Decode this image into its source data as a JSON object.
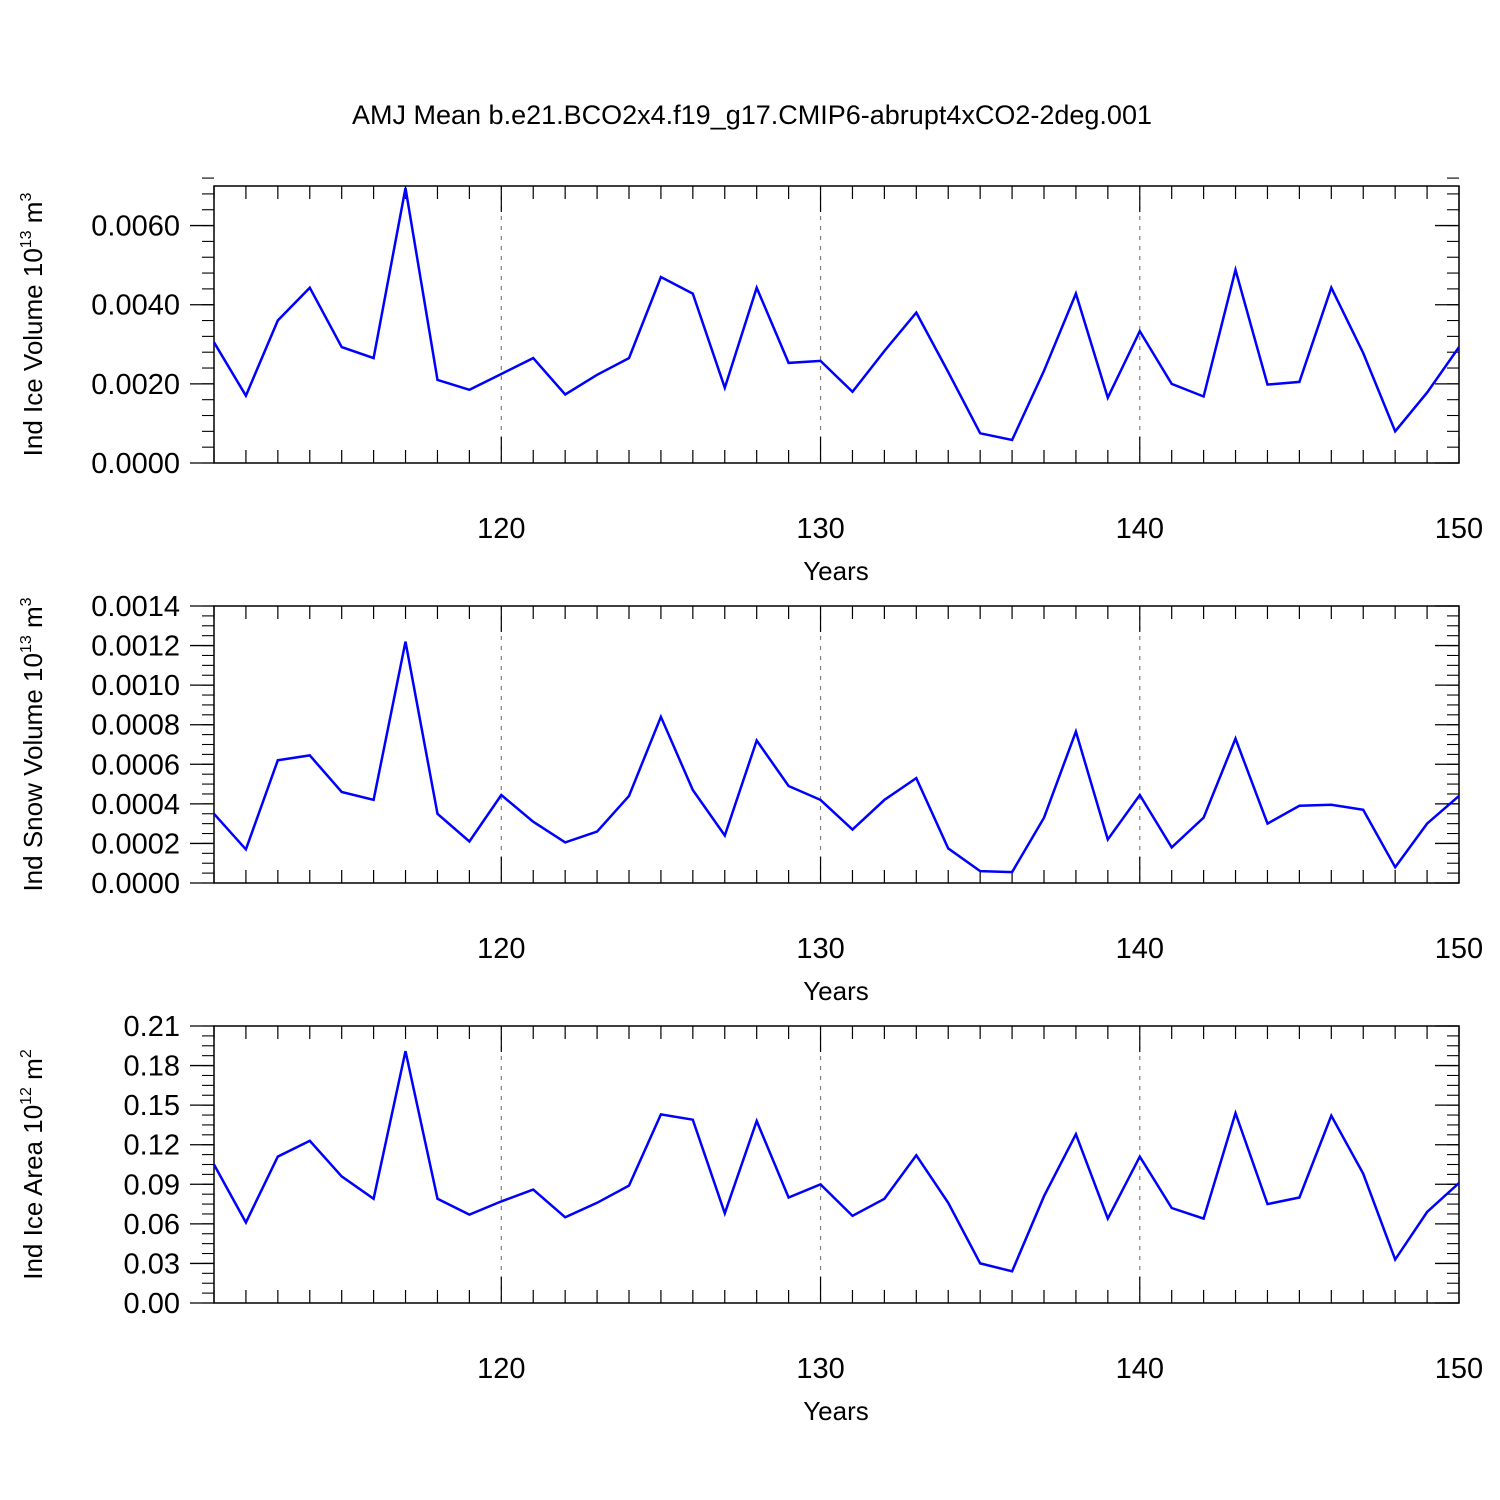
{
  "title": "AMJ Mean b.e21.BCO2x4.f19_g17.CMIP6-abrupt4xCO2-2deg.001",
  "colors": {
    "line": "#0000ff",
    "frame": "#000000",
    "grid": "#808080"
  },
  "chart_data": [
    {
      "type": "line",
      "xlabel": "Years",
      "ylabel": {
        "text": "Ind Ice Volume 10",
        "sup": "13",
        "unit": " m",
        "unit_sup": "3"
      },
      "xlim": [
        111,
        150
      ],
      "ylim": [
        0,
        0.007
      ],
      "x_ticks": [
        120,
        130,
        140,
        150
      ],
      "x_tick_labels": [
        "120",
        "130",
        "140",
        "150"
      ],
      "y_ticks": [
        0,
        0.002,
        0.004,
        0.006
      ],
      "y_tick_labels": [
        "0.0000",
        "0.0020",
        "0.0040",
        "0.0060"
      ],
      "y_minor_step": 0.0004,
      "grid_x": [
        120,
        130,
        140
      ],
      "x": [
        111,
        112,
        113,
        114,
        115,
        116,
        117,
        118,
        119,
        120,
        121,
        122,
        123,
        124,
        125,
        126,
        127,
        128,
        129,
        130,
        131,
        132,
        133,
        134,
        135,
        136,
        137,
        138,
        139,
        140,
        141,
        142,
        143,
        144,
        145,
        146,
        147,
        148,
        149,
        150
      ],
      "values": [
        0.00305,
        0.0017,
        0.0036,
        0.00443,
        0.00293,
        0.00265,
        0.00695,
        0.0021,
        0.00185,
        0.00225,
        0.00265,
        0.00173,
        0.00223,
        0.00265,
        0.0047,
        0.00428,
        0.0019,
        0.00443,
        0.00253,
        0.00258,
        0.0018,
        0.00283,
        0.0038,
        0.0023,
        0.00075,
        0.00058,
        0.00233,
        0.00428,
        0.00165,
        0.00333,
        0.002,
        0.00168,
        0.00488,
        0.00198,
        0.00205,
        0.00443,
        0.00278,
        0.0008,
        0.00178,
        0.00293
      ]
    },
    {
      "type": "line",
      "xlabel": "Years",
      "ylabel": {
        "text": "Ind Snow Volume 10",
        "sup": "13",
        "unit": " m",
        "unit_sup": "3"
      },
      "xlim": [
        111,
        150
      ],
      "ylim": [
        0,
        0.0014
      ],
      "x_ticks": [
        120,
        130,
        140,
        150
      ],
      "x_tick_labels": [
        "120",
        "130",
        "140",
        "150"
      ],
      "y_ticks": [
        0,
        0.0002,
        0.0004,
        0.0006,
        0.0008,
        0.001,
        0.0012,
        0.0014
      ],
      "y_tick_labels": [
        "0.0000",
        "0.0002",
        "0.0004",
        "0.0006",
        "0.0008",
        "0.0010",
        "0.0012",
        "0.0014"
      ],
      "y_minor_step": 5e-05,
      "grid_x": [
        120,
        130,
        140
      ],
      "x": [
        111,
        112,
        113,
        114,
        115,
        116,
        117,
        118,
        119,
        120,
        121,
        122,
        123,
        124,
        125,
        126,
        127,
        128,
        129,
        130,
        131,
        132,
        133,
        134,
        135,
        136,
        137,
        138,
        139,
        140,
        141,
        142,
        143,
        144,
        145,
        146,
        147,
        148,
        149,
        150
      ],
      "values": [
        0.00035,
        0.00017,
        0.00062,
        0.000645,
        0.00046,
        0.00042,
        0.00122,
        0.00035,
        0.00021,
        0.000445,
        0.00031,
        0.000205,
        0.00026,
        0.00044,
        0.00084,
        0.00047,
        0.00024,
        0.00072,
        0.00049,
        0.00042,
        0.00027,
        0.00042,
        0.00053,
        0.000175,
        6e-05,
        5.5e-05,
        0.00033,
        0.000765,
        0.00022,
        0.000445,
        0.00018,
        0.00033,
        0.00073,
        0.0003,
        0.00039,
        0.000395,
        0.00037,
        8e-05,
        0.0003,
        0.00044
      ]
    },
    {
      "type": "line",
      "xlabel": "Years",
      "ylabel": {
        "text": "Ind Ice Area 10",
        "sup": "12",
        "unit": " m",
        "unit_sup": "2"
      },
      "xlim": [
        111,
        150
      ],
      "ylim": [
        0,
        0.21
      ],
      "x_ticks": [
        120,
        130,
        140,
        150
      ],
      "x_tick_labels": [
        "120",
        "130",
        "140",
        "150"
      ],
      "y_ticks": [
        0,
        0.03,
        0.06,
        0.09,
        0.12,
        0.15,
        0.18,
        0.21
      ],
      "y_tick_labels": [
        "0.00",
        "0.03",
        "0.06",
        "0.09",
        "0.12",
        "0.15",
        "0.18",
        "0.21"
      ],
      "y_minor_step": 0.0075,
      "grid_x": [
        120,
        130,
        140
      ],
      "x": [
        111,
        112,
        113,
        114,
        115,
        116,
        117,
        118,
        119,
        120,
        121,
        122,
        123,
        124,
        125,
        126,
        127,
        128,
        129,
        130,
        131,
        132,
        133,
        134,
        135,
        136,
        137,
        138,
        139,
        140,
        141,
        142,
        143,
        144,
        145,
        146,
        147,
        148,
        149,
        150
      ],
      "values": [
        0.105,
        0.061,
        0.111,
        0.123,
        0.096,
        0.079,
        0.191,
        0.079,
        0.067,
        0.077,
        0.086,
        0.065,
        0.076,
        0.089,
        0.143,
        0.139,
        0.068,
        0.138,
        0.08,
        0.09,
        0.066,
        0.079,
        0.112,
        0.076,
        0.03,
        0.024,
        0.081,
        0.128,
        0.064,
        0.111,
        0.072,
        0.064,
        0.144,
        0.075,
        0.08,
        0.142,
        0.098,
        0.033,
        0.069,
        0.091
      ]
    }
  ]
}
